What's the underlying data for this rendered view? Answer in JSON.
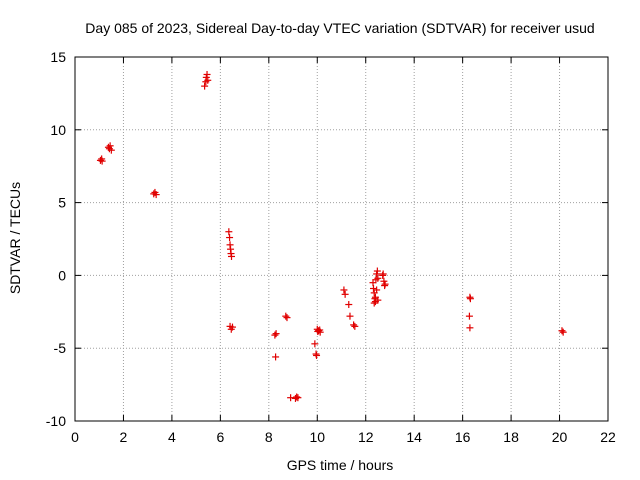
{
  "chart_data": {
    "type": "scatter",
    "title": "Day 085 of 2023, Sidereal Day-to-day VTEC variation (SDTVAR) for receiver usud",
    "xlabel": "GPS time / hours",
    "ylabel": "SDTVAR / TECUs",
    "xlim": [
      0,
      22
    ],
    "ylim": [
      -10,
      15
    ],
    "xticks": [
      0,
      2,
      4,
      6,
      8,
      10,
      12,
      14,
      16,
      18,
      20,
      22
    ],
    "yticks": [
      -10,
      -5,
      0,
      5,
      10,
      15
    ],
    "xtick_labels": [
      "0",
      "2",
      "4",
      "6",
      "8",
      "10",
      "12",
      "14",
      "16",
      "18",
      "20",
      "22"
    ],
    "ytick_labels": [
      "-10",
      "-5",
      "0",
      "5",
      "10",
      "15"
    ],
    "grid": true,
    "marker": "+",
    "color": "#e00000",
    "series": [
      {
        "name": "SDTVAR",
        "x": [
          1.05,
          1.1,
          1.12,
          1.38,
          1.42,
          1.45,
          1.5,
          3.25,
          3.3,
          3.35,
          5.35,
          5.4,
          5.42,
          5.45,
          5.48,
          6.35,
          6.38,
          6.4,
          6.42,
          6.44,
          6.46,
          6.4,
          6.45,
          6.5,
          8.25,
          8.3,
          8.28,
          8.7,
          8.75,
          8.9,
          9.1,
          9.15,
          9.2,
          9.9,
          9.95,
          9.97,
          10.0,
          10.02,
          10.05,
          10.1,
          10.12,
          11.1,
          11.15,
          11.3,
          11.35,
          11.5,
          11.55,
          12.3,
          12.32,
          12.35,
          12.38,
          12.4,
          12.42,
          12.45,
          12.48,
          12.5,
          12.35,
          12.4,
          12.45,
          12.5,
          12.7,
          12.75,
          12.8,
          12.78,
          12.72,
          16.3,
          16.32,
          16.28,
          16.3,
          20.1,
          20.15
        ],
        "y": [
          7.9,
          8.0,
          7.85,
          8.8,
          8.7,
          8.9,
          8.6,
          5.6,
          5.7,
          5.55,
          13.0,
          13.3,
          13.6,
          13.8,
          13.4,
          3.0,
          2.6,
          2.1,
          1.8,
          1.5,
          1.3,
          -3.5,
          -3.7,
          -3.55,
          -4.1,
          -4.0,
          -5.6,
          -2.8,
          -2.9,
          -8.4,
          -8.45,
          -8.35,
          -8.4,
          -4.7,
          -5.4,
          -5.5,
          -3.7,
          -3.85,
          -3.8,
          -3.75,
          -3.9,
          -1.0,
          -1.3,
          -2.0,
          -2.8,
          -3.4,
          -3.5,
          -0.5,
          -0.9,
          -1.2,
          -1.6,
          -1.8,
          -0.3,
          0.1,
          0.3,
          -0.2,
          -1.9,
          -1.5,
          -1.0,
          -1.7,
          0.0,
          -0.4,
          -0.6,
          -0.7,
          0.1,
          -1.5,
          -1.6,
          -2.8,
          -3.6,
          -3.8,
          -3.9
        ]
      }
    ]
  }
}
